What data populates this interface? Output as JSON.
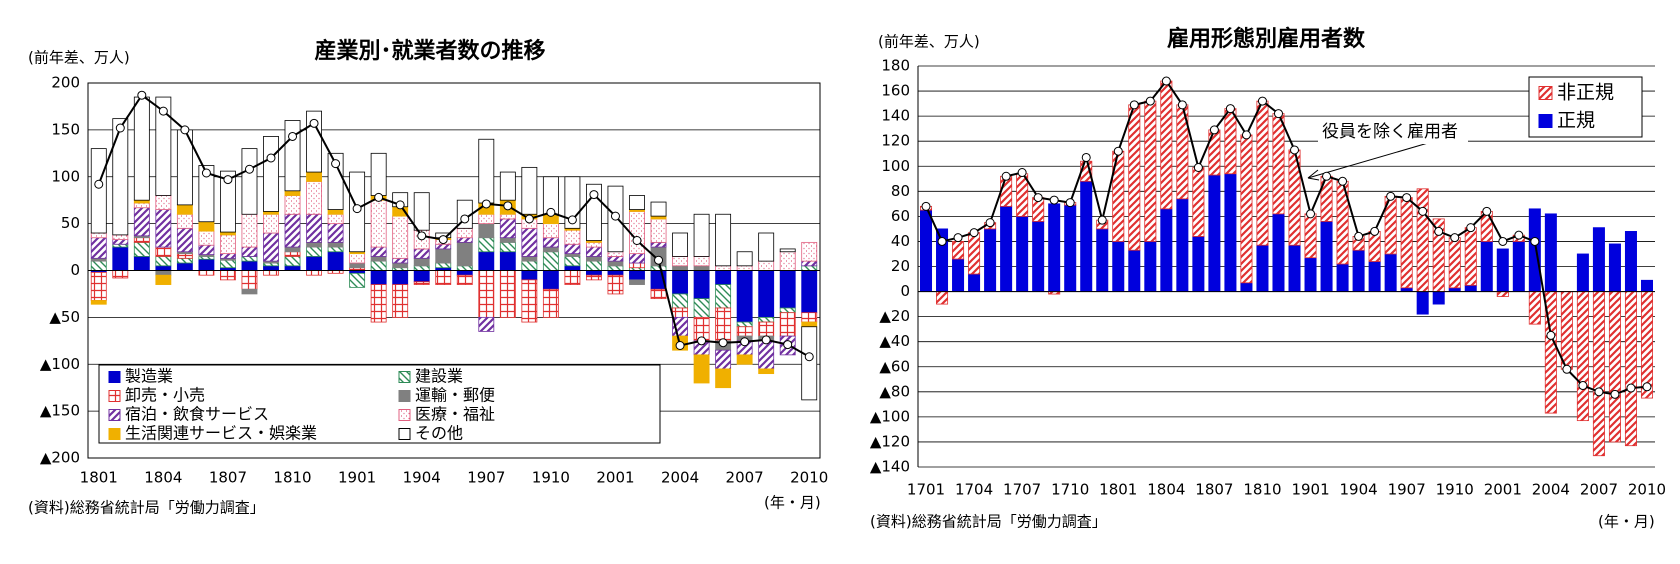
{
  "chart_data": [
    {
      "type": "bar",
      "stacked": true,
      "title": "産業別･就業者数の推移",
      "unit_label": "(前年差、万人)",
      "source": "(資料)総務省統計局「労働力調査」",
      "xlabel": "(年・月)",
      "categories": [
        "1801",
        null,
        null,
        "1804",
        null,
        null,
        "1807",
        null,
        null,
        "1810",
        null,
        null,
        "1901",
        null,
        null,
        "1904",
        null,
        null,
        "1907",
        null,
        null,
        "1910",
        null,
        null,
        "2001",
        null,
        null,
        "2004",
        null,
        null,
        "2007",
        null,
        null,
        "2010"
      ],
      "ylim": [
        -200,
        200
      ],
      "yticks": [
        {
          "value": -200,
          "label": "▲200"
        },
        {
          "value": -150,
          "label": "▲150"
        },
        {
          "value": -100,
          "label": "▲100"
        },
        {
          "value": -50,
          "label": "▲50"
        },
        0,
        50,
        100,
        150,
        200
      ],
      "grid": true,
      "series": [
        {
          "name": "製造業",
          "color": "#0000cc",
          "pattern": "solid",
          "values": [
            -2,
            25,
            15,
            5,
            8,
            12,
            3,
            10,
            5,
            5,
            15,
            20,
            -3,
            -15,
            -15,
            -12,
            3,
            -5,
            20,
            20,
            -10,
            -20,
            5,
            -5,
            -5,
            -10,
            -20,
            -25,
            -30,
            -15,
            -55,
            -50,
            -40,
            -45
          ]
        },
        {
          "name": "建設業",
          "color": "#2e8b57",
          "pattern": "hatch-back",
          "values": [
            10,
            3,
            15,
            10,
            5,
            3,
            8,
            5,
            3,
            10,
            10,
            5,
            -15,
            10,
            3,
            5,
            5,
            5,
            15,
            10,
            10,
            20,
            10,
            10,
            5,
            3,
            5,
            -15,
            -20,
            -25,
            -5,
            -5,
            -5,
            5
          ]
        },
        {
          "name": "卸売・小売",
          "color": "#e03030",
          "pattern": "grid",
          "values": [
            -30,
            -8,
            5,
            10,
            5,
            -5,
            -10,
            -20,
            -5,
            5,
            -5,
            -3,
            3,
            -40,
            -35,
            -3,
            -15,
            -10,
            -50,
            -50,
            -45,
            -30,
            -15,
            -5,
            -20,
            5,
            -10,
            -10,
            -25,
            -35,
            -10,
            -15,
            -25,
            -10
          ]
        },
        {
          "name": "運輸・郵便",
          "color": "#808080",
          "pattern": "solid-gray",
          "values": [
            3,
            0,
            2,
            -5,
            2,
            2,
            2,
            -5,
            2,
            5,
            5,
            5,
            5,
            5,
            5,
            8,
            15,
            25,
            15,
            5,
            5,
            5,
            3,
            5,
            5,
            -5,
            20,
            5,
            5,
            -10,
            -5,
            -5,
            0,
            0
          ]
        },
        {
          "name": "宿泊・飲食サービス",
          "color": "#7030a0",
          "pattern": "hatch",
          "values": [
            22,
            5,
            30,
            40,
            25,
            10,
            5,
            10,
            30,
            35,
            30,
            20,
            0,
            10,
            5,
            10,
            5,
            5,
            -15,
            20,
            30,
            10,
            10,
            10,
            5,
            10,
            5,
            -20,
            -15,
            -20,
            -15,
            -30,
            -20,
            5
          ]
        },
        {
          "name": "医療・福祉",
          "color": "#e06080",
          "pattern": "dots",
          "values": [
            5,
            5,
            5,
            15,
            15,
            15,
            20,
            35,
            20,
            20,
            35,
            10,
            10,
            50,
            45,
            20,
            5,
            10,
            10,
            5,
            10,
            15,
            15,
            5,
            5,
            45,
            25,
            10,
            10,
            5,
            5,
            10,
            20,
            20
          ]
        },
        {
          "name": "生活関連サービス・娯楽業",
          "color": "#f0b000",
          "pattern": "solid",
          "values": [
            -4,
            0,
            3,
            -10,
            10,
            10,
            3,
            0,
            3,
            5,
            10,
            5,
            2,
            5,
            10,
            0,
            2,
            0,
            12,
            15,
            5,
            10,
            2,
            2,
            0,
            2,
            3,
            -15,
            -30,
            -20,
            -10,
            -5,
            0,
            -5
          ]
        },
        {
          "name": "その他",
          "color": "#ffffff",
          "pattern": "solid",
          "values": [
            90,
            124,
            110,
            105,
            80,
            60,
            65,
            70,
            80,
            75,
            65,
            60,
            85,
            45,
            15,
            40,
            5,
            30,
            68,
            30,
            50,
            40,
            55,
            60,
            70,
            15,
            15,
            25,
            45,
            55,
            15,
            30,
            3,
            -78
          ]
        }
      ],
      "line": {
        "color": "#000000",
        "values": [
          92,
          152,
          187,
          170,
          150,
          104,
          97,
          108,
          120,
          143,
          157,
          114,
          66,
          78,
          70,
          37,
          33,
          55,
          71,
          69,
          55,
          62,
          54,
          81,
          58,
          32,
          11,
          -80,
          -75,
          -77,
          -76,
          -74,
          -79,
          -92
        ]
      }
    },
    {
      "type": "bar",
      "stacked": true,
      "title": "雇用形態別雇用者数",
      "unit_label": "(前年差、万人)",
      "source": "(資料)総務省統計局「労働力調査」",
      "xlabel": "(年・月)",
      "categories": [
        "1701",
        null,
        null,
        "1704",
        null,
        null,
        "1707",
        null,
        null,
        "1710",
        null,
        null,
        "1801",
        null,
        null,
        "1804",
        null,
        null,
        "1807",
        null,
        null,
        "1810",
        null,
        null,
        "1901",
        null,
        null,
        "1904",
        null,
        null,
        "1907",
        null,
        null,
        "1910",
        null,
        null,
        "2001",
        null,
        null,
        "2004",
        null,
        null,
        "2007",
        null,
        null,
        "2010"
      ],
      "ylim": [
        -140,
        180
      ],
      "yticks": [
        {
          "value": -140,
          "label": "▲140"
        },
        {
          "value": -120,
          "label": "▲120"
        },
        {
          "value": -100,
          "label": "▲100"
        },
        {
          "value": -80,
          "label": "▲80"
        },
        {
          "value": -60,
          "label": "▲60"
        },
        {
          "value": -40,
          "label": "▲40"
        },
        {
          "value": -20,
          "label": "▲20"
        },
        0,
        20,
        40,
        60,
        80,
        100,
        120,
        140,
        160,
        180
      ],
      "grid": true,
      "legend": "top-right",
      "legend_order": [
        1,
        0
      ],
      "series": [
        {
          "name": "正規",
          "color": "#0000dd",
          "pattern": "solid",
          "values": [
            65,
            50,
            26,
            14,
            50,
            68,
            60,
            56,
            70,
            69,
            88,
            50,
            40,
            33,
            40,
            66,
            74,
            44,
            93,
            94,
            7,
            37,
            62,
            37,
            27,
            56,
            22,
            33,
            24,
            30,
            3,
            -18,
            -10,
            3,
            5,
            40,
            34,
            40,
            66,
            62,
            0,
            30,
            51,
            38,
            48,
            9
          ]
        },
        {
          "name": "非正規",
          "color": "#e03030",
          "pattern": "hatch",
          "values": [
            3,
            -10,
            14,
            33,
            5,
            24,
            34,
            19,
            -2,
            2,
            16,
            7,
            72,
            116,
            112,
            102,
            75,
            55,
            36,
            52,
            118,
            115,
            80,
            76,
            35,
            36,
            66,
            11,
            24,
            46,
            72,
            82,
            58,
            40,
            46,
            24,
            -4,
            5,
            -26,
            -97,
            -62,
            -103,
            -131,
            -120,
            -123,
            -85
          ]
        }
      ],
      "line": {
        "name": "役員を除く雇用者",
        "color": "#000000",
        "values": [
          68,
          40,
          43,
          47,
          55,
          92,
          95,
          75,
          73,
          71,
          107,
          57,
          112,
          149,
          152,
          168,
          149,
          99,
          129,
          146,
          125,
          152,
          142,
          113,
          62,
          92,
          88,
          44,
          48,
          76,
          75,
          64,
          48,
          43,
          51,
          64,
          40,
          45,
          40,
          -35,
          -62,
          -75,
          -80,
          -82,
          -77,
          -76
        ]
      }
    }
  ]
}
